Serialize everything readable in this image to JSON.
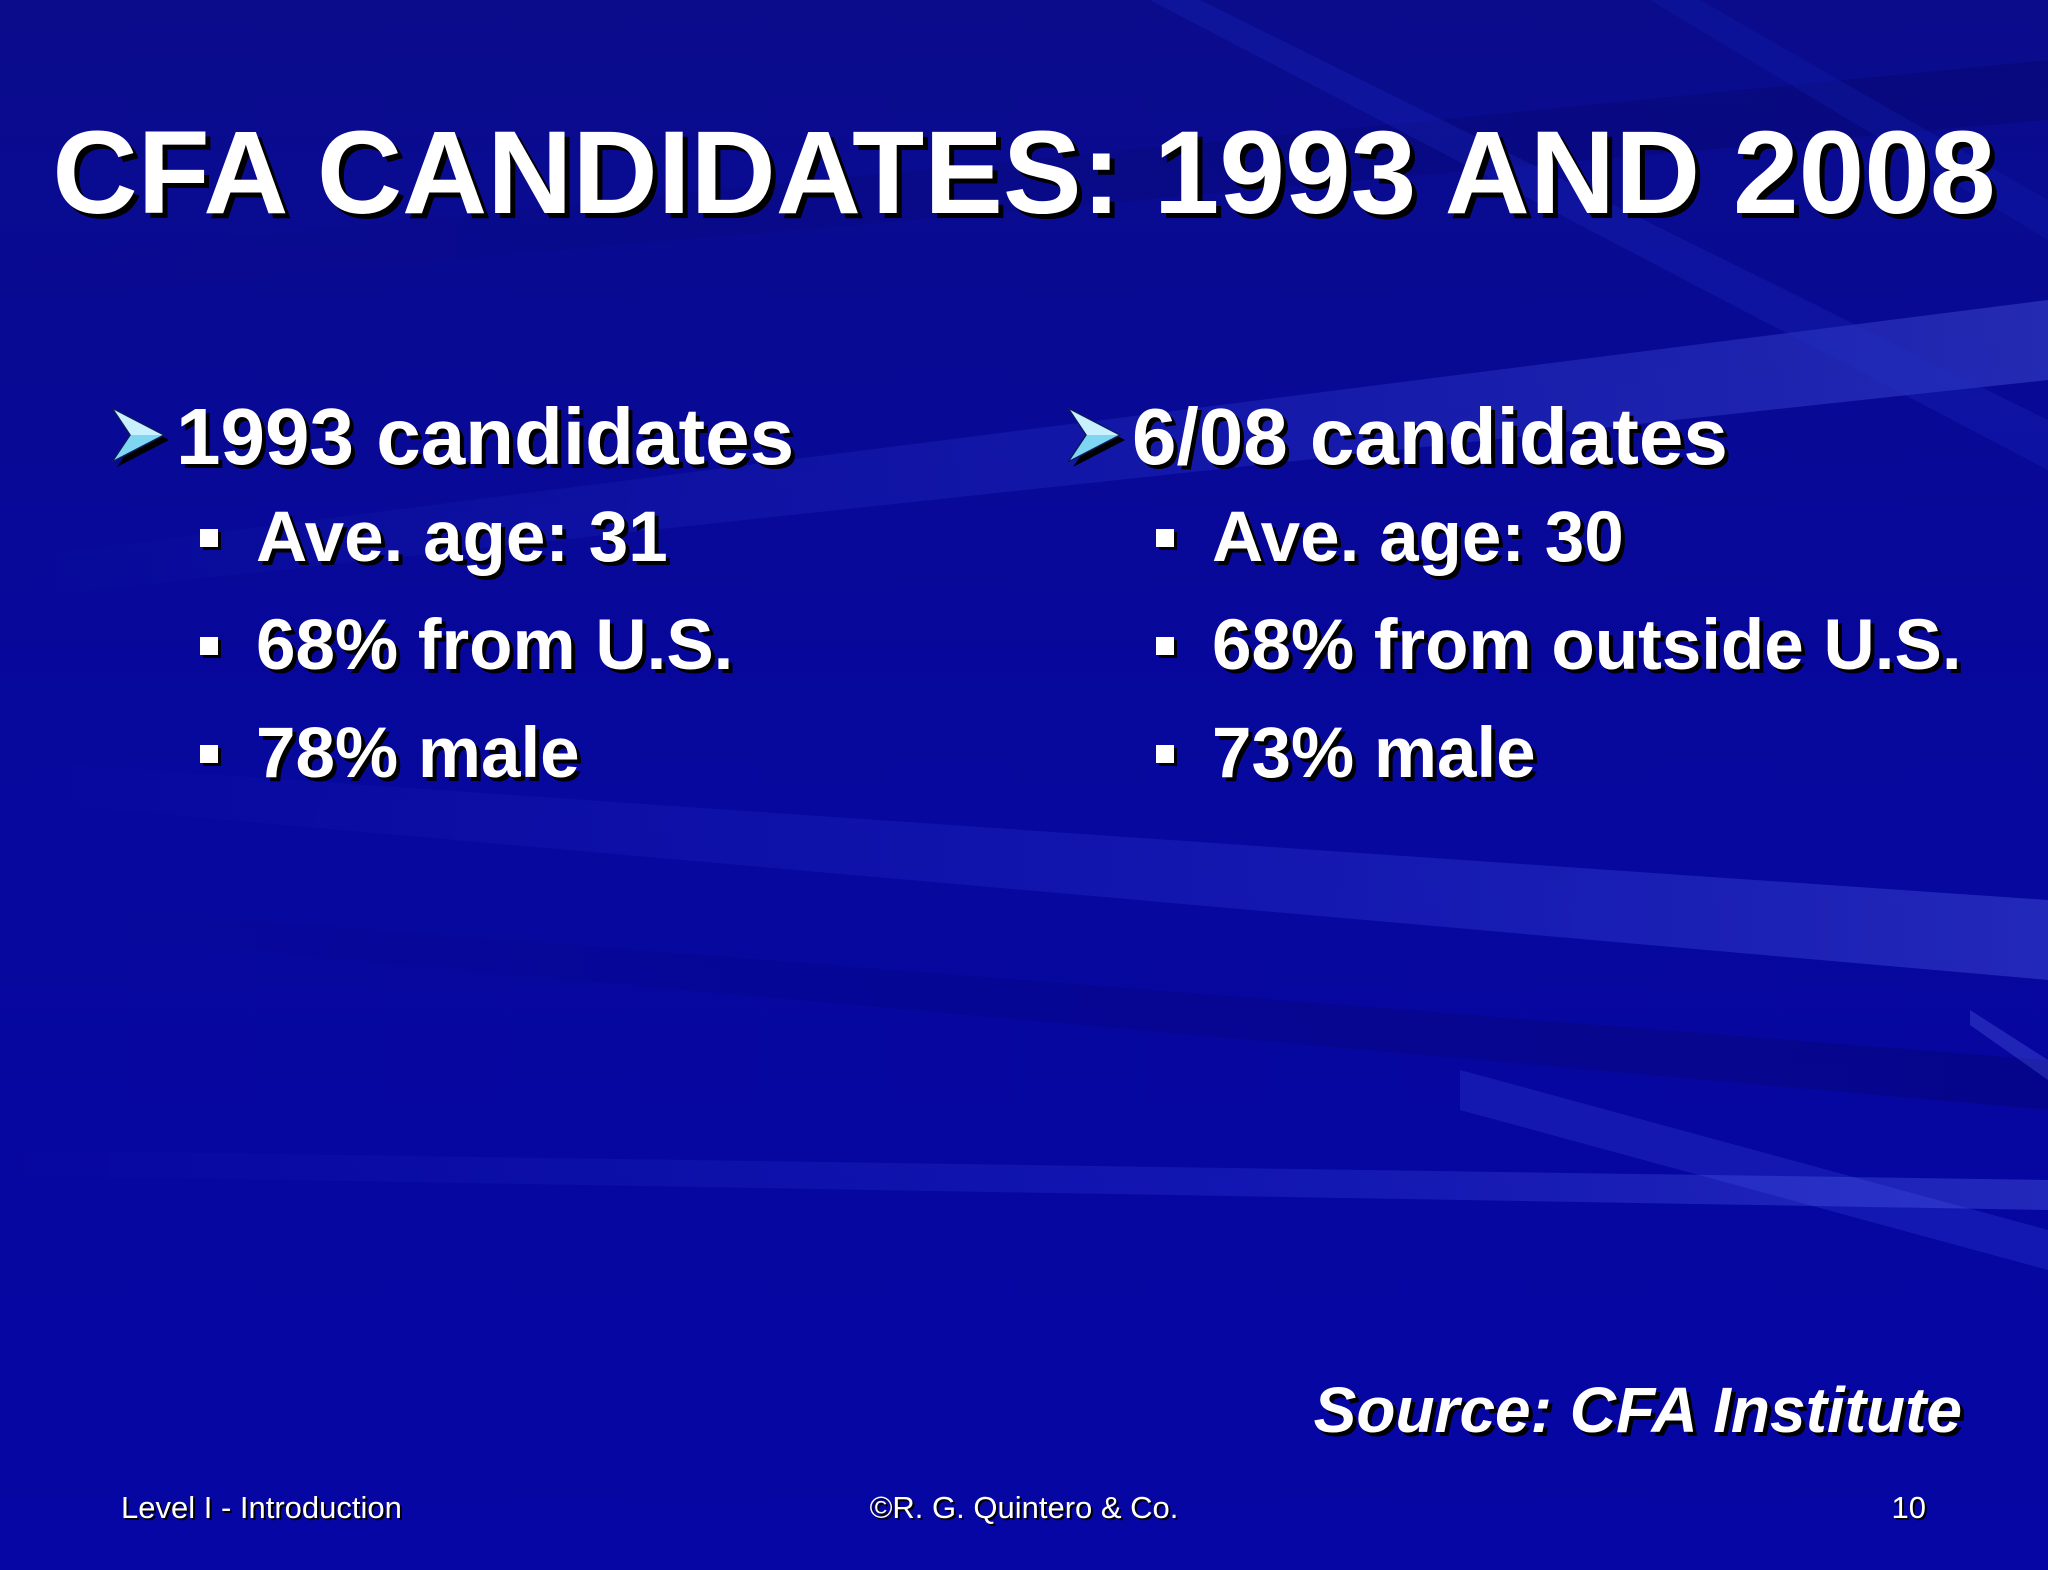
{
  "slide": {
    "title": "CFA CANDIDATES:  1993 AND 2008",
    "columns": [
      {
        "heading": "1993 candidates",
        "items": [
          "Ave. age:  31",
          "68% from U.S.",
          "78% male"
        ]
      },
      {
        "heading": "6/08 candidates",
        "items": [
          "Ave. age:  30",
          "68% from outside U.S.",
          "73% male"
        ]
      }
    ],
    "source": "Source:  CFA Institute"
  },
  "footer": {
    "left": "Level I - Introduction",
    "center": "©R. G. Quintero & Co.",
    "page_number": "10"
  },
  "colors": {
    "background": "#07089c",
    "text": "#ffffff",
    "arrow_accent": "#7fd6f0"
  },
  "icons": {
    "heading_bullet": "arrow-bullet-icon",
    "item_bullet": "square-bullet-icon"
  }
}
